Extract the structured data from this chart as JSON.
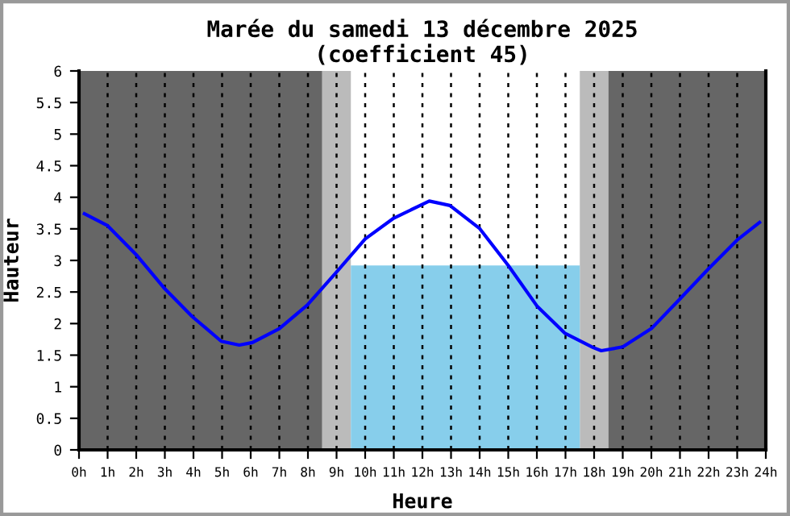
{
  "chart_data": {
    "type": "line",
    "title": "Marée du samedi 13 décembre 2025\n(coefficient 45)",
    "xlabel": "Heure",
    "ylabel": "Hauteur",
    "xlim": [
      0,
      24
    ],
    "ylim": [
      0,
      6
    ],
    "xticks": [
      {
        "value": 0,
        "label": "0h"
      },
      {
        "value": 1,
        "label": "1h"
      },
      {
        "value": 2,
        "label": "2h"
      },
      {
        "value": 3,
        "label": "3h"
      },
      {
        "value": 4,
        "label": "4h"
      },
      {
        "value": 5,
        "label": "5h"
      },
      {
        "value": 6,
        "label": "6h"
      },
      {
        "value": 7,
        "label": "7h"
      },
      {
        "value": 8,
        "label": "8h"
      },
      {
        "value": 9,
        "label": "9h"
      },
      {
        "value": 10,
        "label": "10h"
      },
      {
        "value": 11,
        "label": "11h"
      },
      {
        "value": 12,
        "label": "12h"
      },
      {
        "value": 13,
        "label": "13h"
      },
      {
        "value": 14,
        "label": "14h"
      },
      {
        "value": 15,
        "label": "15h"
      },
      {
        "value": 16,
        "label": "16h"
      },
      {
        "value": 17,
        "label": "17h"
      },
      {
        "value": 18,
        "label": "18h"
      },
      {
        "value": 19,
        "label": "19h"
      },
      {
        "value": 20,
        "label": "20h"
      },
      {
        "value": 21,
        "label": "21h"
      },
      {
        "value": 22,
        "label": "22h"
      },
      {
        "value": 23,
        "label": "23h"
      },
      {
        "value": 24,
        "label": "24h"
      }
    ],
    "yticks": [
      0,
      0.5,
      1,
      1.5,
      2,
      2.5,
      3,
      3.5,
      4,
      4.5,
      5,
      5.5,
      6
    ],
    "grid": "x",
    "bands": [
      {
        "axis": "x",
        "from": 0,
        "to": 8.5,
        "color": "#666666"
      },
      {
        "axis": "x",
        "from": 8.5,
        "to": 9.5,
        "color": "#bbbbbb"
      },
      {
        "axis": "x",
        "from": 17.5,
        "to": 18.5,
        "color": "#bbbbbb"
      },
      {
        "axis": "x",
        "from": 18.5,
        "to": 24,
        "color": "#666666"
      }
    ],
    "series": [
      {
        "type": "area",
        "color": "#87ceeb",
        "x": [
          9.5,
          17.5
        ],
        "values": [
          2.92,
          2.92
        ]
      },
      {
        "color": "#0000ff",
        "x": [
          0.19,
          1.0,
          2.0,
          2.96,
          3.96,
          4.97,
          5.6,
          6.06,
          7.0,
          7.97,
          8.97,
          10.0,
          11.0,
          12.24,
          12.96,
          13.99,
          15.0,
          16.0,
          16.97,
          17.97,
          18.25,
          19.0,
          20.0,
          21.0,
          21.98,
          22.99,
          23.78
        ],
        "values": [
          3.74,
          3.55,
          3.09,
          2.57,
          2.11,
          1.72,
          1.66,
          1.7,
          1.92,
          2.29,
          2.8,
          3.34,
          3.67,
          3.94,
          3.87,
          3.51,
          2.92,
          2.28,
          1.85,
          1.62,
          1.57,
          1.63,
          1.92,
          2.39,
          2.86,
          3.32,
          3.6
        ]
      }
    ],
    "marker": "none"
  }
}
